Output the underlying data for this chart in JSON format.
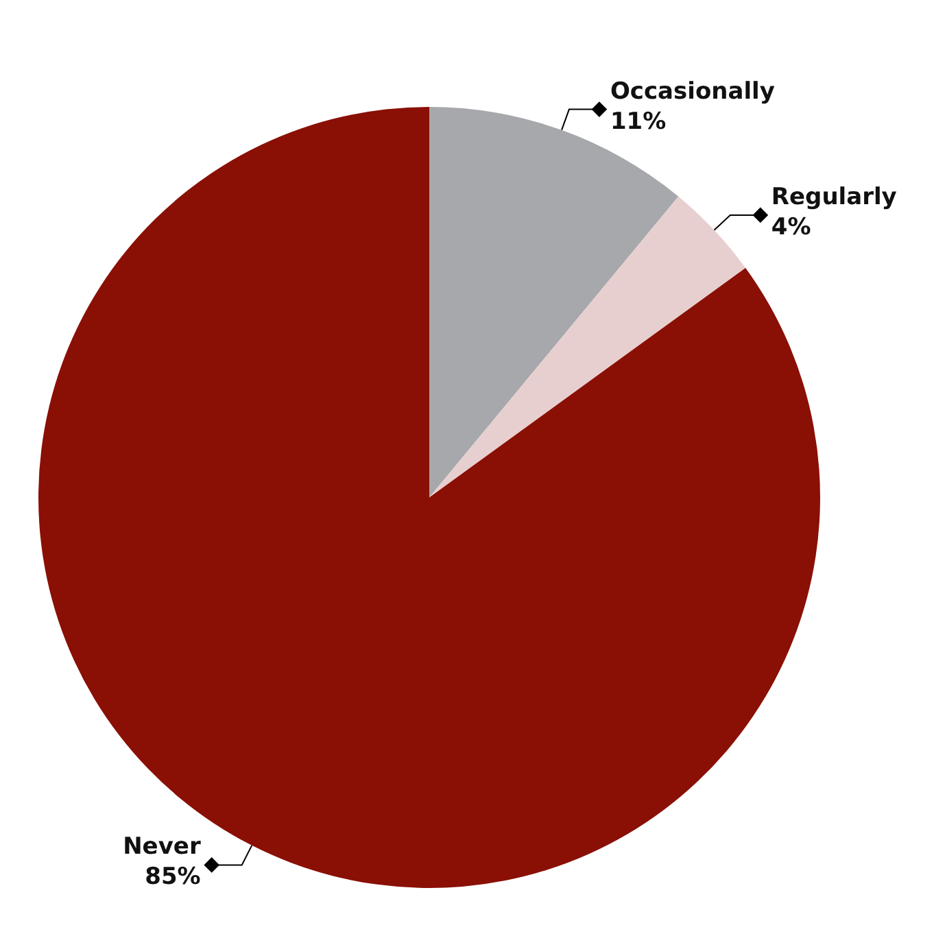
{
  "chart_data": {
    "type": "pie",
    "categories": [
      "Occasionally",
      "Regularly",
      "Never"
    ],
    "values": [
      11,
      4,
      85
    ],
    "value_labels": [
      "11%",
      "4%",
      "85%"
    ],
    "colors": [
      "#a6a8ab",
      "#e8cfcf",
      "#8a0f05"
    ],
    "legend": false
  }
}
